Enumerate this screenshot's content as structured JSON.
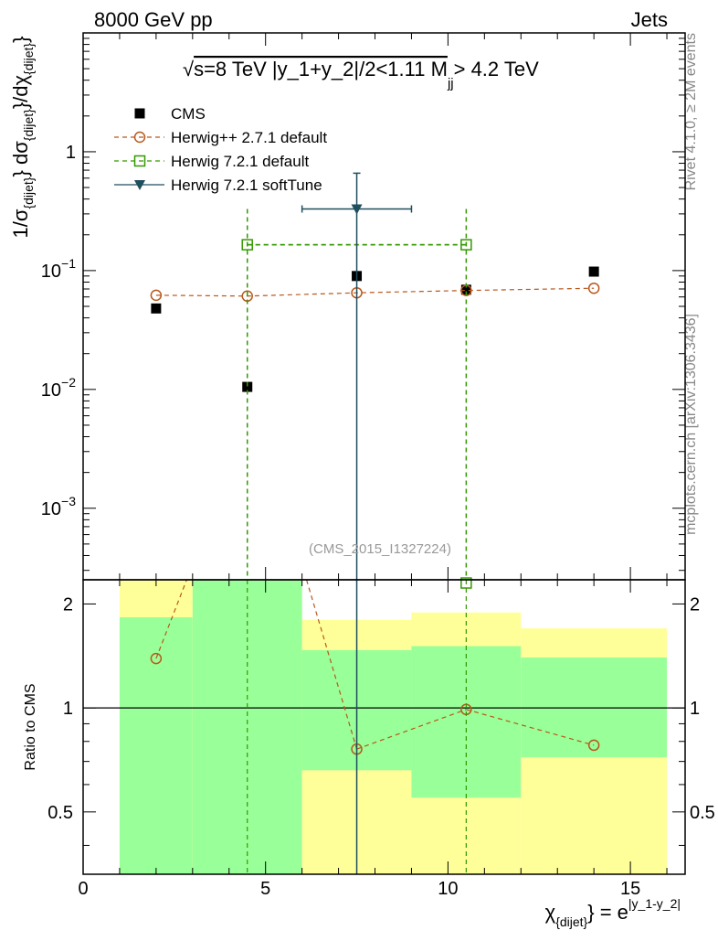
{
  "header": {
    "left": "8000 GeV pp",
    "right": "Jets"
  },
  "side": {
    "rivet": "Rivet 4.1.0, ≥ 2M events",
    "mcplots": "mcplots.cern.ch [arXiv:1306.3436]"
  },
  "chart_data": {
    "type": "scatter",
    "title": "√s=8 TeV |y_1+y_2|/2<1.11 M_jj> 4.2 TeV",
    "title_parts": {
      "sqrt": "√",
      "pre": "s=8 TeV |y_1+y_2|/2<1.11 M",
      "sub": "jj",
      "post": "> 4.2 TeV"
    },
    "watermark": "(CMS_2015_I1327224)",
    "xlabel": "χ_{dijet} = e^{|y_1-y_2|}",
    "xlabel_parts": {
      "chi": "χ",
      "sub": "{dijet}",
      "eq": "} = e",
      "sup": "|y_1-y_2|"
    },
    "ylabel": "1/σ_{dijet} dσ_{dijet}/dχ_{dijet}",
    "ylabel_parts": [
      "1/σ",
      "{dijet}",
      "} dσ",
      "{dijet}",
      "}/dχ",
      "{dijet}",
      "}"
    ],
    "xlim": [
      0,
      16.5
    ],
    "ylim_log": [
      0.00025,
      10
    ],
    "x_ticks": [
      0,
      5,
      10,
      15
    ],
    "x_ticklabels": [
      "0",
      "5",
      "10",
      "15"
    ],
    "y_ticks": [
      1,
      0.1,
      0.01,
      0.001
    ],
    "y_ticklabels": [
      {
        "base": "1",
        "exp": ""
      },
      {
        "base": "10",
        "exp": "−1"
      },
      {
        "base": "10",
        "exp": "−2"
      },
      {
        "base": "10",
        "exp": "−3"
      }
    ],
    "series": [
      {
        "name": "CMS",
        "color": "#000000",
        "marker": "square-filled",
        "line": "none",
        "x": [
          2,
          4.5,
          7.5,
          10.5,
          14
        ],
        "y": [
          0.048,
          0.0105,
          0.09,
          0.069,
          0.098
        ]
      },
      {
        "name": "Herwig++ 2.7.1 default",
        "color": "#b8581c",
        "marker": "circle-open",
        "line": "dashed",
        "x": [
          2,
          4.5,
          7.5,
          10.5,
          14
        ],
        "y": [
          0.062,
          0.061,
          0.065,
          0.068,
          0.071
        ]
      },
      {
        "name": "Herwig 7.2.1 default",
        "color": "#339900",
        "marker": "square-open",
        "line": "dashed",
        "x": [
          4.5,
          10.5
        ],
        "y": [
          0.165,
          0.165
        ],
        "xerr": [
          [
            4.5,
            10.5
          ],
          [
            4.5,
            10.5
          ]
        ],
        "yerr": [
          [
            0.0001,
            0.33
          ],
          [
            0.0001,
            0.33
          ]
        ]
      },
      {
        "name": "Herwig 7.2.1 softTune",
        "color": "#1f4e5f",
        "marker": "triangle-down-filled",
        "line": "solid",
        "x": [
          7.5
        ],
        "y": [
          0.33
        ],
        "xerr": [
          [
            6,
            9
          ]
        ],
        "yerr": [
          [
            0.0001,
            0.66
          ]
        ]
      }
    ],
    "ratio": {
      "ylabel": "Ratio to CMS",
      "ylim": [
        0.33,
        2.35
      ],
      "y_ticks": [
        0.5,
        1,
        2
      ],
      "y_ticklabels": [
        "0.5",
        "1",
        "2"
      ],
      "bands": [
        {
          "x0": 1,
          "x1": 3,
          "green": [
            0.33,
            1.83
          ],
          "yellow": [
            0.33,
            2.5
          ]
        },
        {
          "x0": 3,
          "x1": 6,
          "green": [
            0.33,
            2.5
          ],
          "yellow": [
            0.33,
            2.5
          ]
        },
        {
          "x0": 6,
          "x1": 9,
          "green": [
            0.66,
            1.47
          ],
          "yellow": [
            0.33,
            1.8
          ]
        },
        {
          "x0": 9,
          "x1": 12,
          "green": [
            0.55,
            1.51
          ],
          "yellow": [
            0.33,
            1.89
          ]
        },
        {
          "x0": 12,
          "x1": 16,
          "green": [
            0.72,
            1.4
          ],
          "yellow": [
            0.33,
            1.7
          ]
        }
      ],
      "herwigpp": {
        "x": [
          2,
          3,
          6,
          7.5,
          10.5,
          14
        ],
        "y": [
          1.39,
          2.6,
          2.6,
          0.76,
          0.99,
          0.78
        ]
      },
      "h7default": {
        "x": [
          10.5
        ],
        "y": [
          2.3
        ]
      }
    }
  }
}
